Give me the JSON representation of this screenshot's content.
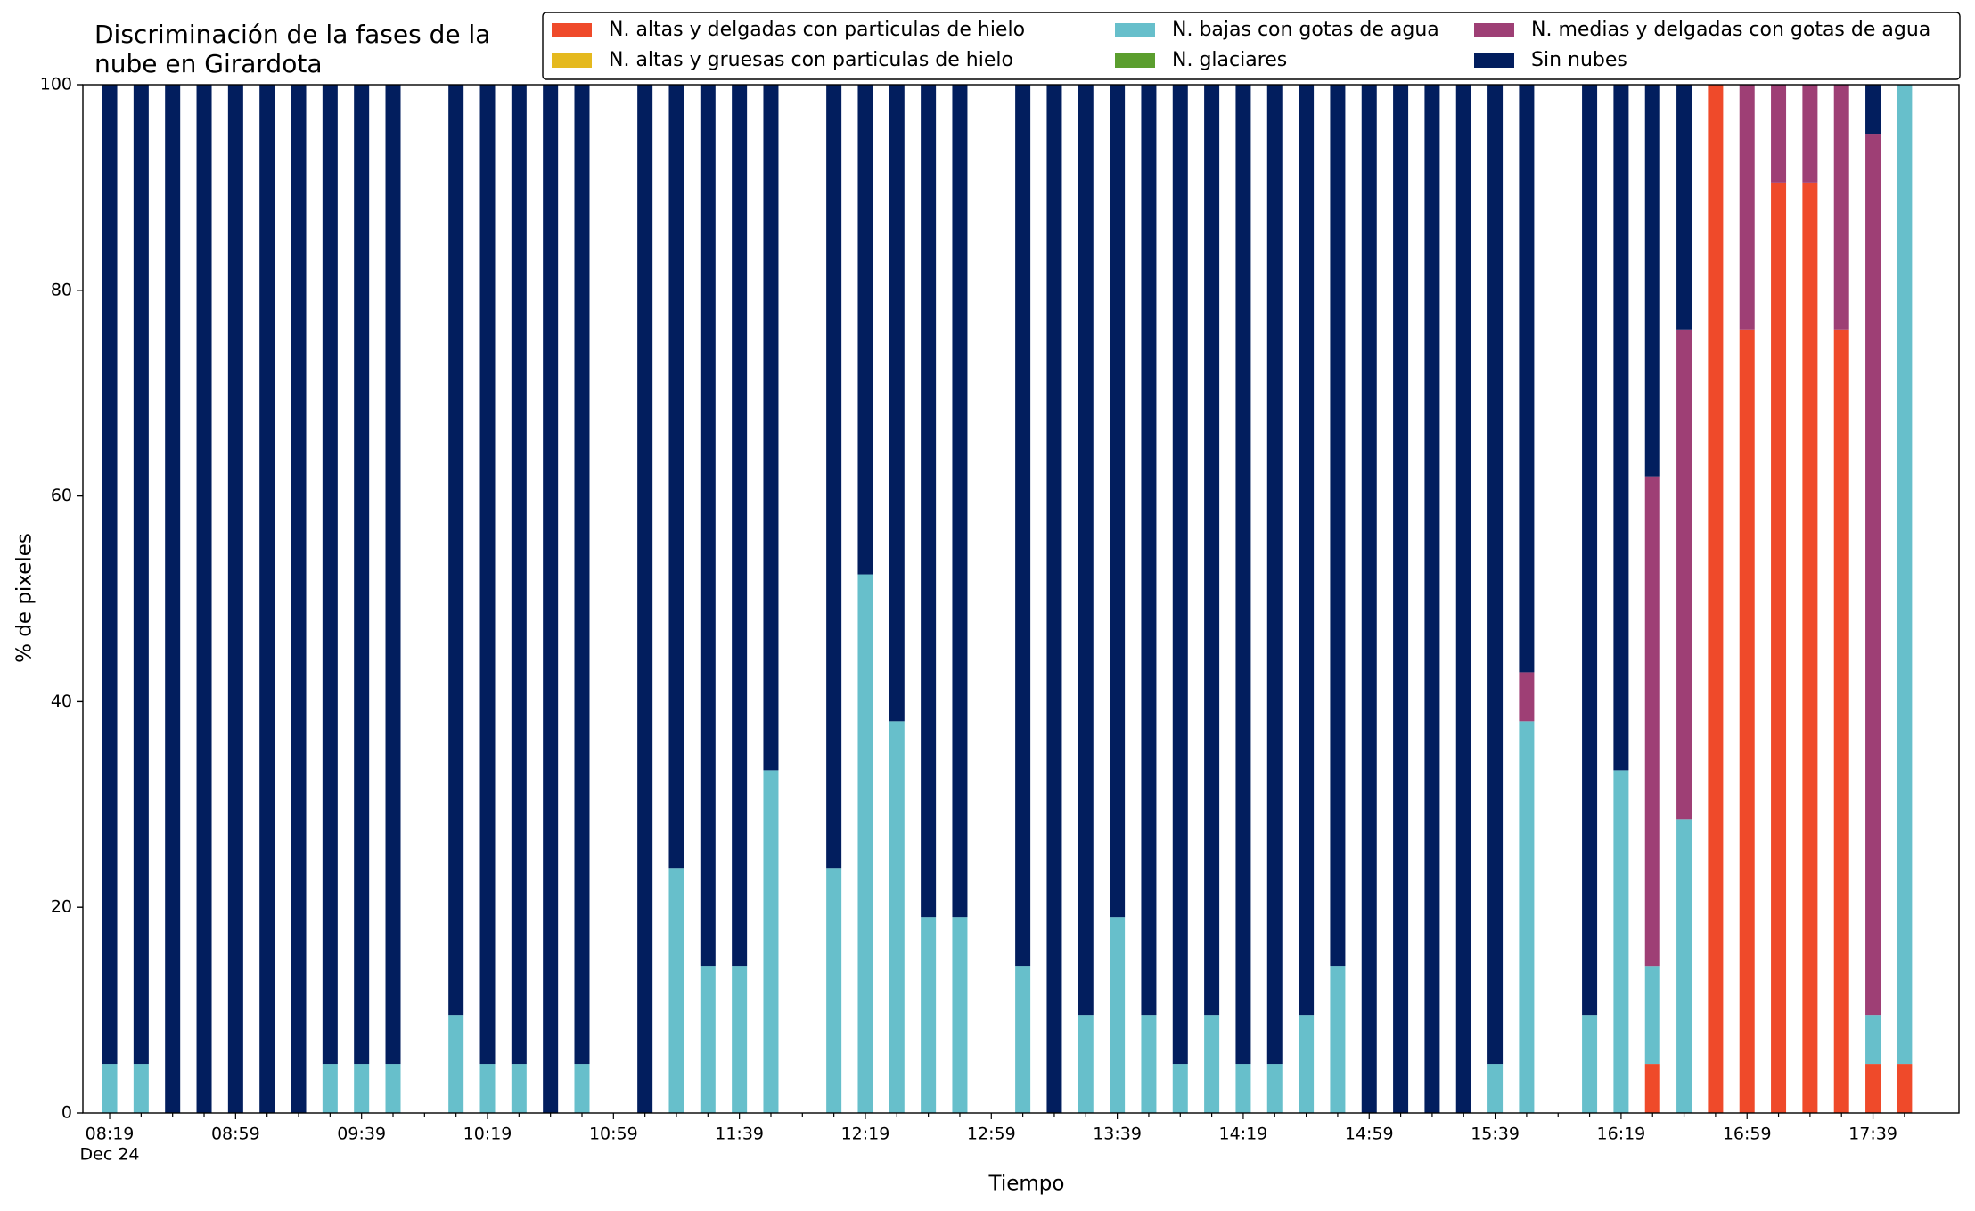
{
  "chart_data": {
    "type": "stacked_bar",
    "title": [
      "Discriminación de la fases de la",
      "nube en Girardota"
    ],
    "xlabel": "Tiempo",
    "ylabel": "% de pixeles",
    "x_sublabel": "Dec 24",
    "legend": "upper right",
    "categories": [
      "08:19",
      null,
      null,
      null,
      "08:59",
      null,
      null,
      null,
      "09:39",
      null,
      null,
      null,
      "10:19",
      null,
      null,
      null,
      "10:59",
      null,
      null,
      null,
      "11:39",
      null,
      null,
      null,
      "12:19",
      null,
      null,
      null,
      "12:59",
      null,
      null,
      null,
      "13:39",
      null,
      null,
      null,
      "14:19",
      null,
      null,
      null,
      "14:59",
      null,
      null,
      null,
      "15:39",
      null,
      null,
      null,
      "16:19",
      null,
      null,
      null,
      "16:59",
      null,
      null,
      null,
      "17:39",
      null
    ],
    "ylim": [
      0,
      100
    ],
    "yticks": [
      0,
      20,
      40,
      60,
      80,
      100
    ],
    "series": [
      {
        "name": "N. altas y delgadas con particulas de hielo",
        "color": "#ef4a2a",
        "values": [
          0,
          0,
          0,
          0,
          0,
          0,
          0,
          0,
          0,
          0,
          null,
          0,
          0,
          0,
          0,
          0,
          null,
          0,
          0,
          0,
          0,
          0,
          null,
          0,
          0,
          0,
          0,
          0,
          null,
          0,
          0,
          0,
          0,
          0,
          0,
          0,
          0,
          0,
          0,
          0,
          0,
          0,
          0,
          0,
          0,
          0,
          null,
          0,
          0,
          4.76,
          0,
          100,
          76.19,
          90.48,
          90.48,
          76.19,
          4.76,
          4.76
        ]
      },
      {
        "name": "N. altas y gruesas con particulas de hielo",
        "color": "#e5b91e",
        "values": [
          0,
          0,
          0,
          0,
          0,
          0,
          0,
          0,
          0,
          0,
          null,
          0,
          0,
          0,
          0,
          0,
          null,
          0,
          0,
          0,
          0,
          0,
          null,
          0,
          0,
          0,
          0,
          0,
          null,
          0,
          0,
          0,
          0,
          0,
          0,
          0,
          0,
          0,
          0,
          0,
          0,
          0,
          0,
          0,
          0,
          0,
          null,
          0,
          0,
          0,
          0,
          0,
          0,
          0,
          0,
          0,
          0,
          0
        ]
      },
      {
        "name": "N. bajas con gotas de agua",
        "color": "#67bfcb",
        "values": [
          4.76,
          4.76,
          0,
          0,
          0,
          0,
          0,
          4.76,
          4.76,
          4.76,
          null,
          9.52,
          4.76,
          4.76,
          0,
          4.76,
          null,
          0,
          23.81,
          14.29,
          14.29,
          33.33,
          null,
          23.81,
          52.38,
          38.1,
          19.05,
          19.05,
          null,
          14.29,
          0,
          9.52,
          19.05,
          9.52,
          4.76,
          9.52,
          4.76,
          4.76,
          9.52,
          14.29,
          0,
          0,
          0,
          0,
          4.76,
          38.1,
          null,
          9.52,
          33.33,
          9.52,
          28.57,
          0,
          0,
          0,
          0,
          0,
          4.76,
          95.24
        ]
      },
      {
        "name": "N. glaciares",
        "color": "#5b9e2e",
        "values": [
          0,
          0,
          0,
          0,
          0,
          0,
          0,
          0,
          0,
          0,
          null,
          0,
          0,
          0,
          0,
          0,
          null,
          0,
          0,
          0,
          0,
          0,
          null,
          0,
          0,
          0,
          0,
          0,
          null,
          0,
          0,
          0,
          0,
          0,
          0,
          0,
          0,
          0,
          0,
          0,
          0,
          0,
          0,
          0,
          0,
          0,
          null,
          0,
          0,
          0,
          0,
          0,
          0,
          0,
          0,
          0,
          0,
          0
        ]
      },
      {
        "name": "N. medias y delgadas con gotas de agua",
        "color": "#9e3f75",
        "values": [
          0,
          0,
          0,
          0,
          0,
          0,
          0,
          0,
          0,
          0,
          null,
          0,
          0,
          0,
          0,
          0,
          null,
          0,
          0,
          0,
          0,
          0,
          null,
          0,
          0,
          0,
          0,
          0,
          null,
          0,
          0,
          0,
          0,
          0,
          0,
          0,
          0,
          0,
          0,
          0,
          0,
          0,
          0,
          0,
          0,
          4.76,
          null,
          0,
          0,
          47.62,
          47.62,
          0,
          23.81,
          9.52,
          9.52,
          23.81,
          85.71,
          0
        ]
      },
      {
        "name": "Sin nubes",
        "color": "#021e5e",
        "values": [
          95.24,
          95.24,
          100,
          100,
          100,
          100,
          100,
          95.24,
          95.24,
          95.24,
          null,
          90.48,
          95.24,
          95.24,
          100,
          95.24,
          null,
          100,
          76.19,
          85.71,
          85.71,
          66.67,
          null,
          76.19,
          47.62,
          61.9,
          80.95,
          80.95,
          null,
          85.71,
          100,
          90.48,
          80.95,
          90.48,
          95.24,
          90.48,
          95.24,
          95.24,
          90.48,
          85.71,
          100,
          100,
          100,
          100,
          95.24,
          57.14,
          null,
          90.48,
          66.67,
          38.1,
          23.81,
          0,
          0,
          0,
          0,
          0,
          4.76,
          0
        ]
      }
    ]
  }
}
